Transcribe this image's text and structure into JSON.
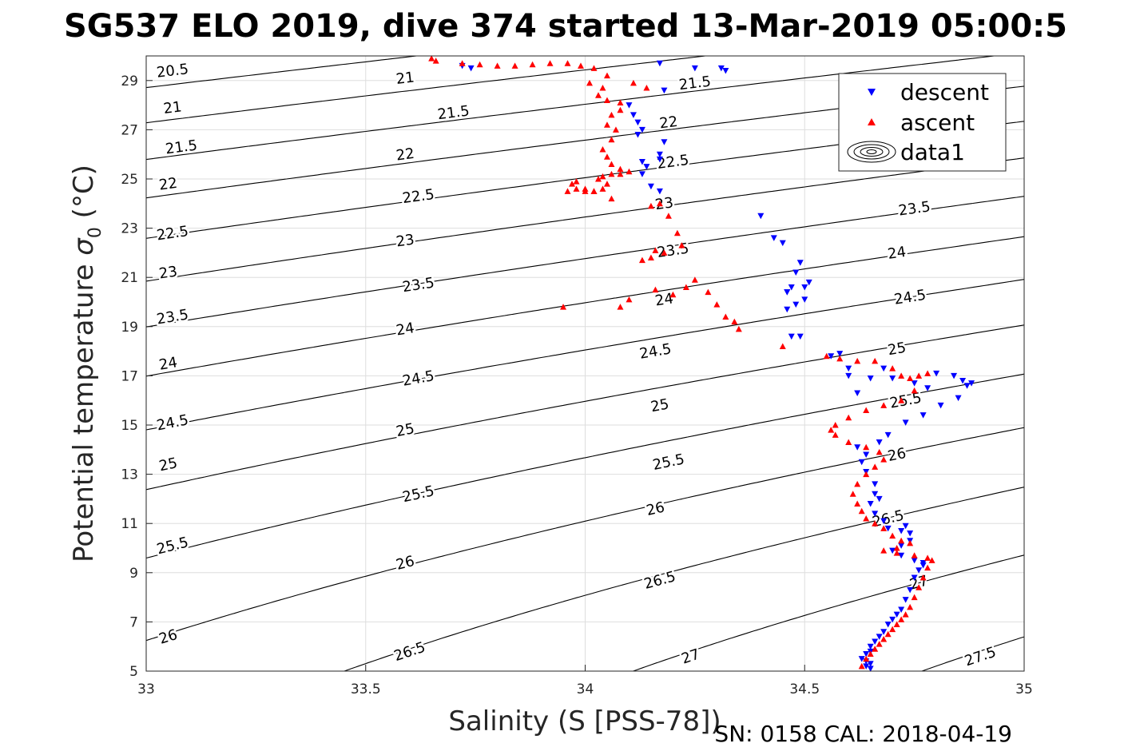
{
  "title": "SG537 ELO 2019, dive 374 started 13-Mar-2019 05:00:5",
  "footer": "SN: 0158  CAL: 2018-04-19",
  "chart_data": {
    "type": "scatter",
    "xlabel": "Salinity (S [PSS-78])",
    "ylabel_main": "Potential temperature ",
    "ylabel_sigma": "σ",
    "ylabel_sub": "0",
    "ylabel_unit": " (°C)",
    "xlim": [
      33,
      35
    ],
    "ylim": [
      5,
      30
    ],
    "x_ticks": [
      33,
      33.5,
      34,
      34.5,
      35
    ],
    "x_tick_labels": [
      "33",
      "33.5",
      "34",
      "34.5",
      "35"
    ],
    "y_ticks": [
      5,
      7,
      9,
      11,
      13,
      15,
      17,
      19,
      21,
      23,
      25,
      27,
      29
    ],
    "y_tick_labels": [
      "5",
      "7",
      "9",
      "11",
      "13",
      "15",
      "17",
      "19",
      "21",
      "23",
      "25",
      "27",
      "29"
    ],
    "grid": true,
    "legend": {
      "placement": "top-right",
      "entries": [
        {
          "label": "descent",
          "marker": "triangle-down",
          "color": "#0000ff"
        },
        {
          "label": "ascent",
          "marker": "triangle-up",
          "color": "#ff0000"
        },
        {
          "label": "data1",
          "marker": "contour"
        }
      ]
    },
    "contours": {
      "levels": [
        20.5,
        21,
        21.5,
        22,
        22.5,
        23,
        23.5,
        24,
        24.5,
        25,
        25.5,
        26,
        26.5,
        27,
        27.5
      ],
      "labels": [
        {
          "text": "20.5",
          "x": 33.06,
          "y": 29.4
        },
        {
          "text": "21",
          "x": 33.06,
          "y": 27.9
        },
        {
          "text": "21.5",
          "x": 33.08,
          "y": 26.3
        },
        {
          "text": "22",
          "x": 33.05,
          "y": 24.8
        },
        {
          "text": "22.5",
          "x": 33.06,
          "y": 22.8
        },
        {
          "text": "23",
          "x": 33.05,
          "y": 21.2
        },
        {
          "text": "23.5",
          "x": 33.06,
          "y": 19.4
        },
        {
          "text": "24",
          "x": 33.05,
          "y": 17.5
        },
        {
          "text": "24.5",
          "x": 33.06,
          "y": 15.1
        },
        {
          "text": "25",
          "x": 33.05,
          "y": 13.4
        },
        {
          "text": "25.5",
          "x": 33.06,
          "y": 10.1
        },
        {
          "text": "26",
          "x": 33.05,
          "y": 6.4
        },
        {
          "text": "21",
          "x": 33.59,
          "y": 29.1
        },
        {
          "text": "21.5",
          "x": 33.7,
          "y": 27.7
        },
        {
          "text": "22",
          "x": 33.59,
          "y": 26.0
        },
        {
          "text": "22.5",
          "x": 33.62,
          "y": 24.3
        },
        {
          "text": "23",
          "x": 33.59,
          "y": 22.5
        },
        {
          "text": "23.5",
          "x": 33.62,
          "y": 20.7
        },
        {
          "text": "24",
          "x": 33.59,
          "y": 18.9
        },
        {
          "text": "24.5",
          "x": 33.62,
          "y": 16.9
        },
        {
          "text": "25",
          "x": 33.59,
          "y": 14.8
        },
        {
          "text": "25.5",
          "x": 33.62,
          "y": 12.2
        },
        {
          "text": "26",
          "x": 33.59,
          "y": 9.4
        },
        {
          "text": "26.5",
          "x": 33.6,
          "y": 5.8
        },
        {
          "text": "21.5",
          "x": 34.25,
          "y": 28.9
        },
        {
          "text": "22",
          "x": 34.19,
          "y": 27.3
        },
        {
          "text": "22.5",
          "x": 34.2,
          "y": 25.7
        },
        {
          "text": "23",
          "x": 34.18,
          "y": 24.0
        },
        {
          "text": "23.5",
          "x": 34.2,
          "y": 22.1
        },
        {
          "text": "24",
          "x": 34.18,
          "y": 20.1
        },
        {
          "text": "24.5",
          "x": 34.16,
          "y": 18.0
        },
        {
          "text": "25",
          "x": 34.17,
          "y": 15.8
        },
        {
          "text": "25.5",
          "x": 34.19,
          "y": 13.5
        },
        {
          "text": "26",
          "x": 34.16,
          "y": 11.6
        },
        {
          "text": "26.5",
          "x": 34.17,
          "y": 8.7
        },
        {
          "text": "27",
          "x": 34.24,
          "y": 5.6
        },
        {
          "text": "23.5",
          "x": 34.75,
          "y": 23.8
        },
        {
          "text": "24",
          "x": 34.71,
          "y": 22.0
        },
        {
          "text": "24.5",
          "x": 34.74,
          "y": 20.2
        },
        {
          "text": "25",
          "x": 34.71,
          "y": 18.1
        },
        {
          "text": "25.5",
          "x": 34.73,
          "y": 16.0
        },
        {
          "text": "26",
          "x": 34.71,
          "y": 13.8
        },
        {
          "text": "26.5",
          "x": 34.69,
          "y": 11.2
        },
        {
          "text": "27",
          "x": 34.76,
          "y": 8.6
        },
        {
          "text": "27.5",
          "x": 34.9,
          "y": 5.6
        }
      ]
    },
    "series": [
      {
        "name": "descent",
        "marker": "triangle-down",
        "color": "#0000ff",
        "x": [
          33.72,
          33.74,
          34.17,
          34.25,
          34.31,
          34.32,
          34.1,
          34.11,
          34.12,
          34.13,
          34.12,
          34.18,
          34.13,
          34.17,
          34.14,
          34.13,
          34.17,
          34.18,
          34.15,
          34.17,
          34.4,
          34.43,
          34.45,
          34.46,
          34.49,
          34.48,
          34.47,
          34.46,
          34.5,
          34.51,
          34.5,
          34.48,
          34.46,
          34.47,
          34.49,
          34.56,
          34.58,
          34.6,
          34.6,
          34.62,
          34.65,
          34.68,
          34.7,
          34.75,
          34.78,
          34.8,
          34.84,
          34.86,
          34.87,
          34.88,
          34.85,
          34.81,
          34.77,
          34.73,
          34.69,
          34.67,
          34.64,
          34.62,
          34.63,
          34.64,
          34.66,
          34.66,
          34.65,
          34.67,
          34.66,
          34.68,
          34.69,
          34.72,
          34.73,
          34.74,
          34.74,
          34.72,
          34.7,
          34.72,
          34.75,
          34.77,
          34.77,
          34.76,
          34.75,
          34.74,
          34.73,
          34.72,
          34.71,
          34.7,
          34.69,
          34.68,
          34.67,
          34.66,
          34.65,
          34.65,
          34.64,
          34.63,
          34.64,
          34.65,
          34.64,
          34.65
        ],
        "y": [
          29.6,
          29.5,
          29.7,
          29.5,
          29.5,
          29.4,
          28.0,
          27.6,
          27.3,
          27.0,
          26.8,
          28.6,
          25.7,
          25.8,
          25.5,
          25.2,
          26.0,
          26.5,
          24.7,
          24.5,
          23.5,
          22.6,
          22.4,
          20.4,
          21.6,
          21.2,
          20.6,
          20.4,
          20.6,
          20.8,
          20.1,
          19.9,
          19.7,
          18.6,
          18.6,
          17.8,
          17.9,
          17.3,
          17.0,
          16.3,
          16.9,
          17.3,
          16.9,
          16.7,
          16.5,
          17.1,
          17.0,
          16.8,
          16.6,
          16.7,
          16.1,
          15.8,
          15.4,
          15.1,
          14.6,
          14.3,
          13.8,
          14.1,
          13.5,
          13.1,
          12.6,
          12.2,
          11.8,
          12.0,
          11.4,
          11.1,
          10.8,
          10.7,
          10.9,
          10.6,
          10.3,
          10.1,
          9.9,
          9.7,
          9.5,
          9.4,
          9.3,
          9.1,
          8.8,
          8.3,
          7.9,
          7.5,
          7.3,
          7.1,
          6.9,
          6.6,
          6.4,
          6.2,
          6.0,
          5.8,
          5.7,
          5.5,
          5.4,
          5.3,
          5.2,
          5.1
        ]
      },
      {
        "name": "ascent",
        "marker": "triangle-up",
        "color": "#ff0000",
        "x": [
          33.65,
          33.66,
          33.72,
          33.76,
          33.8,
          33.84,
          33.88,
          33.92,
          33.96,
          33.99,
          34.02,
          34.05,
          34.04,
          34.01,
          34.03,
          34.05,
          34.08,
          34.11,
          34.14,
          34.08,
          34.06,
          34.05,
          34.07,
          34.06,
          34.04,
          34.05,
          34.06,
          34.08,
          34.1,
          34.08,
          34.06,
          34.04,
          34.03,
          34.05,
          34.04,
          34.02,
          34.0,
          33.98,
          33.97,
          33.96,
          33.98,
          34.0,
          34.02,
          34.06,
          34.15,
          34.17,
          34.19,
          34.21,
          34.22,
          34.18,
          34.16,
          34.15,
          34.13,
          34.1,
          34.08,
          34.16,
          34.2,
          34.23,
          34.25,
          34.28,
          34.3,
          34.32,
          34.34,
          34.35,
          33.95,
          34.45,
          34.55,
          34.58,
          34.62,
          34.66,
          34.7,
          34.72,
          34.74,
          34.76,
          34.78,
          34.75,
          34.72,
          34.68,
          34.64,
          34.6,
          34.57,
          34.56,
          34.57,
          34.6,
          34.64,
          34.67,
          34.68,
          34.66,
          34.64,
          34.62,
          34.61,
          34.62,
          34.63,
          34.64,
          34.66,
          34.68,
          34.7,
          34.72,
          34.74,
          34.71,
          34.68,
          34.71,
          34.75,
          34.78,
          34.79,
          34.78,
          34.77,
          34.76,
          34.75,
          34.74,
          34.73,
          34.72,
          34.71,
          34.7,
          34.69,
          34.68,
          34.67,
          34.66,
          34.65,
          34.64,
          34.63
        ],
        "y": [
          29.9,
          29.8,
          29.7,
          29.65,
          29.6,
          29.6,
          29.65,
          29.7,
          29.7,
          29.6,
          29.5,
          29.2,
          28.7,
          28.9,
          28.4,
          28.2,
          28.1,
          28.9,
          28.7,
          27.8,
          27.6,
          27.2,
          27.0,
          26.6,
          26.2,
          25.9,
          25.6,
          25.4,
          25.3,
          25.2,
          25.2,
          25.1,
          25.0,
          24.8,
          24.6,
          24.5,
          24.5,
          24.9,
          24.8,
          24.5,
          24.6,
          24.6,
          24.5,
          24.2,
          23.9,
          24.0,
          23.5,
          22.8,
          22.3,
          22.0,
          22.1,
          21.8,
          21.7,
          20.1,
          19.8,
          20.5,
          20.3,
          20.6,
          20.9,
          20.4,
          19.9,
          19.4,
          19.2,
          18.9,
          19.8,
          18.2,
          17.8,
          17.7,
          17.6,
          17.6,
          17.3,
          17.0,
          16.9,
          17.0,
          17.1,
          16.4,
          16.0,
          15.8,
          15.6,
          15.3,
          15.0,
          14.8,
          14.6,
          14.3,
          14.1,
          13.9,
          13.6,
          13.3,
          13.0,
          12.6,
          12.2,
          11.8,
          11.5,
          11.2,
          11.0,
          10.8,
          10.5,
          10.3,
          10.2,
          10.0,
          9.9,
          9.8,
          9.7,
          9.6,
          9.5,
          9.2,
          8.8,
          8.4,
          8.0,
          7.6,
          7.3,
          7.1,
          6.9,
          6.7,
          6.5,
          6.3,
          6.1,
          5.9,
          5.7,
          5.5,
          5.2
        ]
      }
    ]
  }
}
